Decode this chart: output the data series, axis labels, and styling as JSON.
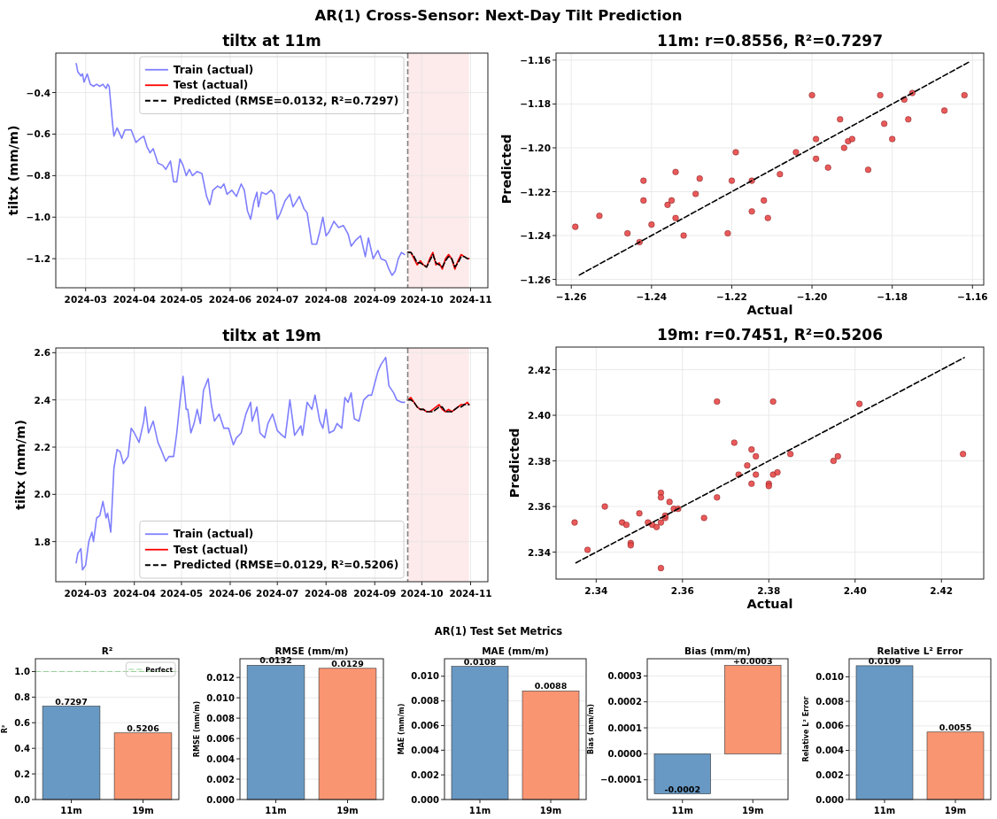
{
  "chart_data": [
    {
      "type": "other",
      "title": "AR(1) Cross-Sensor: Next-Day Tilt Prediction"
    },
    {
      "type": "line",
      "title": "tiltx at 11m",
      "ylabel": "tiltx (mm/m)",
      "xlim": [
        "2024-02-11",
        "2024-11-12"
      ],
      "ylim": [
        -1.34,
        -0.21
      ],
      "xticks": [
        {
          "value": "2024-03-01",
          "label": "2024-03"
        },
        {
          "value": "2024-04-01",
          "label": "2024-04"
        },
        {
          "value": "2024-05-01",
          "label": "2024-05"
        },
        {
          "value": "2024-06-01",
          "label": "2024-06"
        },
        {
          "value": "2024-07-01",
          "label": "2024-07"
        },
        {
          "value": "2024-08-01",
          "label": "2024-08"
        },
        {
          "value": "2024-09-01",
          "label": "2024-09"
        },
        {
          "value": "2024-10-01",
          "label": "2024-10"
        },
        {
          "value": "2024-11-01",
          "label": "2024-11"
        }
      ],
      "yticks": [
        {
          "value": -1.2,
          "label": "−1.2"
        },
        {
          "value": -1.0,
          "label": "−1.0"
        },
        {
          "value": -0.8,
          "label": "−0.8"
        },
        {
          "value": -0.6,
          "label": "−0.6"
        },
        {
          "value": -0.4,
          "label": "−0.4"
        }
      ],
      "grid": true,
      "legend": "top",
      "ref_lines": [
        {
          "axis": "x",
          "value": "2024-09-22",
          "color": "#808080",
          "line_style": "dashed"
        }
      ],
      "bands": [
        {
          "axis": "x",
          "from": "2024-09-22",
          "to": "2024-10-31",
          "color": "#fdeaea"
        }
      ],
      "series": [
        {
          "name": "Train (actual)",
          "color": "#7f7fff",
          "x": [
            "2024-02-24",
            "2024-02-25",
            "2024-02-27",
            "2024-02-28",
            "2024-02-29",
            "2024-03-02",
            "2024-03-04",
            "2024-03-06",
            "2024-03-08",
            "2024-03-10",
            "2024-03-12",
            "2024-03-14",
            "2024-03-15",
            "2024-03-16",
            "2024-03-18",
            "2024-03-19",
            "2024-03-21",
            "2024-03-24",
            "2024-03-26",
            "2024-03-28",
            "2024-03-30",
            "2024-04-02",
            "2024-04-05",
            "2024-04-07",
            "2024-04-09",
            "2024-04-11",
            "2024-04-13",
            "2024-04-16",
            "2024-04-19",
            "2024-04-21",
            "2024-04-24",
            "2024-04-26",
            "2024-04-28",
            "2024-04-30",
            "2024-05-02",
            "2024-05-04",
            "2024-05-06",
            "2024-05-08",
            "2024-05-11",
            "2024-05-14",
            "2024-05-17",
            "2024-05-19",
            "2024-05-21",
            "2024-05-24",
            "2024-05-26",
            "2024-05-28",
            "2024-05-30",
            "2024-06-02",
            "2024-06-05",
            "2024-06-08",
            "2024-06-10",
            "2024-06-12",
            "2024-06-14",
            "2024-06-16",
            "2024-06-18",
            "2024-06-19",
            "2024-06-21",
            "2024-06-24",
            "2024-06-27",
            "2024-06-29",
            "2024-07-01",
            "2024-07-03",
            "2024-07-06",
            "2024-07-09",
            "2024-07-11",
            "2024-07-15",
            "2024-07-18",
            "2024-07-20",
            "2024-07-23",
            "2024-07-26",
            "2024-07-28",
            "2024-07-30",
            "2024-08-01",
            "2024-08-03",
            "2024-08-06",
            "2024-08-09",
            "2024-08-12",
            "2024-08-15",
            "2024-08-17",
            "2024-08-20",
            "2024-08-23",
            "2024-08-26",
            "2024-08-28",
            "2024-08-31",
            "2024-09-03",
            "2024-09-05",
            "2024-09-08",
            "2024-09-10",
            "2024-09-12",
            "2024-09-14",
            "2024-09-16",
            "2024-09-18",
            "2024-09-20"
          ],
          "values": [
            -0.26,
            -0.3,
            -0.32,
            -0.31,
            -0.35,
            -0.31,
            -0.36,
            -0.37,
            -0.36,
            -0.37,
            -0.36,
            -0.38,
            -0.36,
            -0.37,
            -0.54,
            -0.61,
            -0.57,
            -0.62,
            -0.58,
            -0.58,
            -0.58,
            -0.64,
            -0.62,
            -0.61,
            -0.66,
            -0.69,
            -0.67,
            -0.74,
            -0.75,
            -0.77,
            -0.73,
            -0.83,
            -0.83,
            -0.72,
            -0.75,
            -0.8,
            -0.77,
            -0.8,
            -0.78,
            -0.79,
            -0.9,
            -0.94,
            -0.87,
            -0.85,
            -0.86,
            -0.84,
            -0.89,
            -0.87,
            -0.9,
            -0.84,
            -0.87,
            -0.97,
            -1.01,
            -0.93,
            -0.88,
            -0.95,
            -0.88,
            -0.89,
            -0.87,
            -0.89,
            -1.01,
            -0.98,
            -0.92,
            -0.89,
            -0.95,
            -0.9,
            -0.96,
            -0.98,
            -1.13,
            -1.13,
            -1.07,
            -1.0,
            -1.09,
            -1.07,
            -1.02,
            -1.05,
            -1.04,
            -1.08,
            -1.14,
            -1.11,
            -1.09,
            -1.19,
            -1.1,
            -1.2,
            -1.16,
            -1.2,
            -1.21,
            -1.25,
            -1.28,
            -1.26,
            -1.2,
            -1.17,
            -1.18
          ]
        },
        {
          "name": "Test (actual)",
          "color": "#ff0000",
          "x": [
            "2024-09-22",
            "2024-09-24",
            "2024-09-26",
            "2024-09-28",
            "2024-09-30",
            "2024-10-02",
            "2024-10-04",
            "2024-10-06",
            "2024-10-08",
            "2024-10-10",
            "2024-10-12",
            "2024-10-14",
            "2024-10-16",
            "2024-10-18",
            "2024-10-20",
            "2024-10-22",
            "2024-10-24",
            "2024-10-26",
            "2024-10-28",
            "2024-10-30",
            "2024-10-31"
          ],
          "values": [
            -1.17,
            -1.17,
            -1.2,
            -1.23,
            -1.21,
            -1.23,
            -1.24,
            -1.2,
            -1.17,
            -1.23,
            -1.22,
            -1.25,
            -1.2,
            -1.18,
            -1.2,
            -1.25,
            -1.21,
            -1.18,
            -1.19,
            -1.2,
            -1.2
          ]
        },
        {
          "name": "Predicted (RMSE=0.0132, R²=0.7297)",
          "color": "#000000",
          "line_style": "dashed",
          "x": [
            "2024-09-22",
            "2024-09-24",
            "2024-09-26",
            "2024-09-28",
            "2024-09-30",
            "2024-10-02",
            "2024-10-04",
            "2024-10-06",
            "2024-10-08",
            "2024-10-10",
            "2024-10-12",
            "2024-10-14",
            "2024-10-16",
            "2024-10-18",
            "2024-10-20",
            "2024-10-22",
            "2024-10-24",
            "2024-10-26",
            "2024-10-28",
            "2024-10-30",
            "2024-10-31"
          ],
          "values": [
            -1.17,
            -1.17,
            -1.19,
            -1.22,
            -1.22,
            -1.23,
            -1.24,
            -1.21,
            -1.18,
            -1.22,
            -1.23,
            -1.24,
            -1.21,
            -1.19,
            -1.2,
            -1.24,
            -1.22,
            -1.19,
            -1.19,
            -1.2,
            -1.2
          ]
        }
      ]
    },
    {
      "type": "scatter",
      "title": "11m: r=0.8556, R²=0.7297",
      "xlabel": "Actual",
      "ylabel": "Predicted",
      "xlim": [
        -1.2638,
        -1.1572
      ],
      "ylim": [
        -1.2626,
        -1.1568
      ],
      "xticks": [
        {
          "value": -1.26,
          "label": "−1.26"
        },
        {
          "value": -1.24,
          "label": "−1.24"
        },
        {
          "value": -1.22,
          "label": "−1.22"
        },
        {
          "value": -1.2,
          "label": "−1.20"
        },
        {
          "value": -1.18,
          "label": "−1.18"
        },
        {
          "value": -1.16,
          "label": "−1.16"
        }
      ],
      "yticks": [
        {
          "value": -1.26,
          "label": "−1.26"
        },
        {
          "value": -1.24,
          "label": "−1.24"
        },
        {
          "value": -1.22,
          "label": "−1.22"
        },
        {
          "value": -1.2,
          "label": "−1.20"
        },
        {
          "value": -1.18,
          "label": "−1.18"
        },
        {
          "value": -1.16,
          "label": "−1.16"
        }
      ],
      "grid": true,
      "series": [
        {
          "color": "#e84848",
          "marker": "circle",
          "x": [
            -1.259,
            -1.253,
            -1.246,
            -1.243,
            -1.242,
            -1.242,
            -1.24,
            -1.236,
            -1.235,
            -1.234,
            -1.234,
            -1.232,
            -1.229,
            -1.228,
            -1.221,
            -1.22,
            -1.219,
            -1.215,
            -1.215,
            -1.212,
            -1.211,
            -1.208,
            -1.204,
            -1.2,
            -1.199,
            -1.199,
            -1.196,
            -1.193,
            -1.192,
            -1.191,
            -1.19,
            -1.186,
            -1.183,
            -1.182,
            -1.18,
            -1.177,
            -1.176,
            -1.175,
            -1.167,
            -1.162
          ],
          "values": [
            -1.236,
            -1.231,
            -1.239,
            -1.243,
            -1.215,
            -1.224,
            -1.235,
            -1.226,
            -1.224,
            -1.232,
            -1.211,
            -1.24,
            -1.221,
            -1.214,
            -1.239,
            -1.215,
            -1.202,
            -1.215,
            -1.229,
            -1.224,
            -1.232,
            -1.212,
            -1.202,
            -1.176,
            -1.205,
            -1.196,
            -1.209,
            -1.187,
            -1.2,
            -1.197,
            -1.196,
            -1.21,
            -1.176,
            -1.189,
            -1.196,
            -1.178,
            -1.187,
            -1.175,
            -1.183,
            -1.176
          ]
        },
        {
          "type": "line",
          "color": "#000000",
          "line_style": "dashed",
          "x": [
            -1.258,
            -1.161
          ],
          "values": [
            -1.258,
            -1.161
          ]
        }
      ]
    },
    {
      "type": "line",
      "title": "tiltx at 19m",
      "ylabel": "tiltx (mm/m)",
      "xlim": [
        "2024-02-11",
        "2024-11-12"
      ],
      "ylim": [
        1.63,
        2.62
      ],
      "xticks": [
        {
          "value": "2024-03-01",
          "label": "2024-03"
        },
        {
          "value": "2024-04-01",
          "label": "2024-04"
        },
        {
          "value": "2024-05-01",
          "label": "2024-05"
        },
        {
          "value": "2024-06-01",
          "label": "2024-06"
        },
        {
          "value": "2024-07-01",
          "label": "2024-07"
        },
        {
          "value": "2024-08-01",
          "label": "2024-08"
        },
        {
          "value": "2024-09-01",
          "label": "2024-09"
        },
        {
          "value": "2024-10-01",
          "label": "2024-10"
        },
        {
          "value": "2024-11-01",
          "label": "2024-11"
        }
      ],
      "yticks": [
        {
          "value": 1.8,
          "label": "1.8"
        },
        {
          "value": 2.0,
          "label": "2.0"
        },
        {
          "value": 2.2,
          "label": "2.2"
        },
        {
          "value": 2.4,
          "label": "2.4"
        },
        {
          "value": 2.6,
          "label": "2.6"
        }
      ],
      "grid": true,
      "legend": "bottom",
      "ref_lines": [
        {
          "axis": "x",
          "value": "2024-09-22",
          "color": "#808080",
          "line_style": "dashed"
        }
      ],
      "bands": [
        {
          "axis": "x",
          "from": "2024-09-22",
          "to": "2024-10-31",
          "color": "#fdeaea"
        }
      ],
      "series": [
        {
          "name": "Train (actual)",
          "color": "#7f7fff",
          "x": [
            "2024-02-24",
            "2024-02-25",
            "2024-02-26",
            "2024-02-27",
            "2024-02-28",
            "2024-03-01",
            "2024-03-03",
            "2024-03-05",
            "2024-03-06",
            "2024-03-08",
            "2024-03-10",
            "2024-03-12",
            "2024-03-14",
            "2024-03-15",
            "2024-03-17",
            "2024-03-19",
            "2024-03-21",
            "2024-03-23",
            "2024-03-25",
            "2024-03-26",
            "2024-03-28",
            "2024-03-30",
            "2024-04-01",
            "2024-04-04",
            "2024-04-07",
            "2024-04-08",
            "2024-04-10",
            "2024-04-13",
            "2024-04-16",
            "2024-04-18",
            "2024-04-21",
            "2024-04-23",
            "2024-04-26",
            "2024-04-28",
            "2024-04-30",
            "2024-05-02",
            "2024-05-04",
            "2024-05-05",
            "2024-05-07",
            "2024-05-09",
            "2024-05-11",
            "2024-05-13",
            "2024-05-15",
            "2024-05-18",
            "2024-05-20",
            "2024-05-22",
            "2024-05-25",
            "2024-05-28",
            "2024-05-31",
            "2024-06-03",
            "2024-06-05",
            "2024-06-08",
            "2024-06-11",
            "2024-06-14",
            "2024-06-15",
            "2024-06-18",
            "2024-06-20",
            "2024-06-23",
            "2024-06-25",
            "2024-06-28",
            "2024-07-01",
            "2024-07-04",
            "2024-07-06",
            "2024-07-09",
            "2024-07-12",
            "2024-07-16",
            "2024-07-17",
            "2024-07-20",
            "2024-07-23",
            "2024-07-25",
            "2024-07-28",
            "2024-07-30",
            "2024-08-01",
            "2024-08-03",
            "2024-08-06",
            "2024-08-08",
            "2024-08-11",
            "2024-08-13",
            "2024-08-15",
            "2024-08-17",
            "2024-08-19",
            "2024-08-22",
            "2024-08-25",
            "2024-08-28",
            "2024-08-30",
            "2024-09-01",
            "2024-09-03",
            "2024-09-05",
            "2024-09-07",
            "2024-09-08",
            "2024-09-10",
            "2024-09-13",
            "2024-09-15",
            "2024-09-18",
            "2024-09-20"
          ],
          "values": [
            1.71,
            1.75,
            1.76,
            1.77,
            1.68,
            1.7,
            1.8,
            1.84,
            1.8,
            1.9,
            1.91,
            1.97,
            1.9,
            1.92,
            1.84,
            2.11,
            2.19,
            2.18,
            2.13,
            2.14,
            2.16,
            2.28,
            2.26,
            2.22,
            2.31,
            2.37,
            2.26,
            2.31,
            2.22,
            2.19,
            2.14,
            2.16,
            2.16,
            2.26,
            2.39,
            2.5,
            2.36,
            2.36,
            2.26,
            2.3,
            2.36,
            2.3,
            2.44,
            2.49,
            2.38,
            2.31,
            2.34,
            2.28,
            2.28,
            2.21,
            2.24,
            2.26,
            2.34,
            2.39,
            2.31,
            2.37,
            2.26,
            2.24,
            2.3,
            2.34,
            2.27,
            2.25,
            2.24,
            2.4,
            2.25,
            2.29,
            2.25,
            2.39,
            2.36,
            2.42,
            2.31,
            2.28,
            2.36,
            2.26,
            2.27,
            2.3,
            2.28,
            2.41,
            2.39,
            2.43,
            2.32,
            2.31,
            2.4,
            2.42,
            2.42,
            2.47,
            2.52,
            2.55,
            2.57,
            2.58,
            2.46,
            2.43,
            2.4,
            2.39,
            2.39
          ]
        },
        {
          "name": "Test (actual)",
          "color": "#ff0000",
          "x": [
            "2024-09-22",
            "2024-09-24",
            "2024-09-26",
            "2024-09-28",
            "2024-09-30",
            "2024-10-02",
            "2024-10-04",
            "2024-10-06",
            "2024-10-08",
            "2024-10-10",
            "2024-10-12",
            "2024-10-14",
            "2024-10-16",
            "2024-10-18",
            "2024-10-20",
            "2024-10-22",
            "2024-10-24",
            "2024-10-26",
            "2024-10-28",
            "2024-10-30",
            "2024-10-31"
          ],
          "values": [
            2.4,
            2.41,
            2.39,
            2.37,
            2.36,
            2.36,
            2.35,
            2.35,
            2.36,
            2.37,
            2.38,
            2.36,
            2.35,
            2.36,
            2.35,
            2.36,
            2.37,
            2.38,
            2.38,
            2.39,
            2.38
          ]
        },
        {
          "name": "Predicted (RMSE=0.0129, R²=0.5206)",
          "color": "#000000",
          "line_style": "dashed",
          "x": [
            "2024-09-22",
            "2024-09-24",
            "2024-09-26",
            "2024-09-28",
            "2024-09-30",
            "2024-10-02",
            "2024-10-04",
            "2024-10-06",
            "2024-10-08",
            "2024-10-10",
            "2024-10-12",
            "2024-10-14",
            "2024-10-16",
            "2024-10-18",
            "2024-10-20",
            "2024-10-22",
            "2024-10-24",
            "2024-10-26",
            "2024-10-28",
            "2024-10-30",
            "2024-10-31"
          ],
          "values": [
            2.4,
            2.4,
            2.39,
            2.37,
            2.36,
            2.36,
            2.35,
            2.35,
            2.35,
            2.36,
            2.37,
            2.37,
            2.35,
            2.35,
            2.35,
            2.36,
            2.37,
            2.37,
            2.38,
            2.38,
            2.38
          ]
        }
      ]
    },
    {
      "type": "scatter",
      "title": "19m: r=0.7451, R²=0.5206",
      "xlabel": "Actual",
      "ylabel": "Predicted",
      "xlim": [
        2.3307,
        2.4298
      ],
      "ylim": [
        2.3282,
        2.4299
      ],
      "xticks": [
        {
          "value": 2.34,
          "label": "2.34"
        },
        {
          "value": 2.36,
          "label": "2.36"
        },
        {
          "value": 2.38,
          "label": "2.38"
        },
        {
          "value": 2.4,
          "label": "2.40"
        },
        {
          "value": 2.42,
          "label": "2.42"
        }
      ],
      "yticks": [
        {
          "value": 2.34,
          "label": "2.34"
        },
        {
          "value": 2.36,
          "label": "2.36"
        },
        {
          "value": 2.38,
          "label": "2.38"
        },
        {
          "value": 2.4,
          "label": "2.40"
        },
        {
          "value": 2.42,
          "label": "2.42"
        }
      ],
      "grid": true,
      "series": [
        {
          "color": "#e84848",
          "marker": "circle",
          "x": [
            2.335,
            2.338,
            2.342,
            2.346,
            2.347,
            2.348,
            2.348,
            2.35,
            2.352,
            2.353,
            2.354,
            2.355,
            2.355,
            2.355,
            2.355,
            2.356,
            2.356,
            2.357,
            2.358,
            2.359,
            2.365,
            2.368,
            2.368,
            2.372,
            2.373,
            2.375,
            2.376,
            2.376,
            2.377,
            2.377,
            2.38,
            2.38,
            2.381,
            2.381,
            2.382,
            2.385,
            2.395,
            2.396,
            2.401,
            2.425
          ],
          "values": [
            2.353,
            2.341,
            2.36,
            2.353,
            2.352,
            2.344,
            2.343,
            2.357,
            2.353,
            2.352,
            2.351,
            2.353,
            2.366,
            2.364,
            2.333,
            2.355,
            2.356,
            2.362,
            2.359,
            2.359,
            2.355,
            2.406,
            2.364,
            2.388,
            2.374,
            2.378,
            2.385,
            2.37,
            2.374,
            2.382,
            2.37,
            2.369,
            2.406,
            2.374,
            2.375,
            2.383,
            2.38,
            2.382,
            2.405,
            2.383
          ]
        },
        {
          "type": "line",
          "color": "#000000",
          "line_style": "dashed",
          "x": [
            2.3353,
            2.4253
          ],
          "values": [
            2.3353,
            2.4253
          ]
        }
      ]
    },
    {
      "type": "other",
      "title": "AR(1) Test Set Metrics"
    },
    {
      "type": "bar",
      "title": "R²",
      "ylabel": "R²",
      "categories": [
        "11m",
        "19m"
      ],
      "values": [
        0.7297,
        0.5206
      ],
      "colors": [
        "#6899c4",
        "#fa9572"
      ],
      "ylim": [
        0,
        1.1
      ],
      "yticks": [
        {
          "value": 0,
          "label": "0.0"
        },
        {
          "value": 0.2,
          "label": "0.2"
        },
        {
          "value": 0.4,
          "label": "0.4"
        },
        {
          "value": 0.6,
          "label": "0.6"
        },
        {
          "value": 0.8,
          "label": "0.8"
        },
        {
          "value": 1.0,
          "label": "1.0"
        }
      ],
      "grid": "y",
      "data_labels": true,
      "legend": "top right",
      "ref_lines": [
        {
          "axis": "y",
          "value": 1.0,
          "label": "Perfect",
          "color": "#80c980",
          "line_style": "dashed"
        }
      ]
    },
    {
      "type": "bar",
      "title": "RMSE (mm/m)",
      "ylabel": "RMSE (mm/m)",
      "categories": [
        "11m",
        "19m"
      ],
      "values": [
        0.0132,
        0.0129
      ],
      "colors": [
        "#6899c4",
        "#fa9572"
      ],
      "ylim": [
        0,
        0.01384
      ],
      "yticks": [
        {
          "value": 0,
          "label": "0.000"
        },
        {
          "value": 0.002,
          "label": "0.002"
        },
        {
          "value": 0.004,
          "label": "0.004"
        },
        {
          "value": 0.006,
          "label": "0.006"
        },
        {
          "value": 0.008,
          "label": "0.008"
        },
        {
          "value": 0.01,
          "label": "0.010"
        },
        {
          "value": 0.012,
          "label": "0.012"
        }
      ],
      "grid": "y",
      "data_labels": true
    },
    {
      "type": "bar",
      "title": "MAE (mm/m)",
      "ylabel": "MAE (mm/m)",
      "categories": [
        "11m",
        "19m"
      ],
      "values": [
        0.0108,
        0.0088
      ],
      "colors": [
        "#6899c4",
        "#fa9572"
      ],
      "ylim": [
        0,
        0.01142
      ],
      "yticks": [
        {
          "value": 0,
          "label": "0.000"
        },
        {
          "value": 0.002,
          "label": "0.002"
        },
        {
          "value": 0.004,
          "label": "0.004"
        },
        {
          "value": 0.006,
          "label": "0.006"
        },
        {
          "value": 0.008,
          "label": "0.008"
        },
        {
          "value": 0.01,
          "label": "0.010"
        }
      ],
      "grid": "y",
      "data_labels": true
    },
    {
      "type": "bar",
      "title": "Bias (mm/m)",
      "ylabel": "Bias (mm/m)",
      "categories": [
        "11m",
        "19m"
      ],
      "values": [
        -0.000154,
        0.00034
      ],
      "value_labels": [
        "-0.0002",
        "+0.0003"
      ],
      "colors": [
        "#6899c4",
        "#fa9572"
      ],
      "ylim": [
        -0.000176,
        0.000366
      ],
      "yticks": [
        {
          "value": -0.0001,
          "label": "−0.0001"
        },
        {
          "value": 0,
          "label": "0.0000"
        },
        {
          "value": 0.0001,
          "label": "0.0001"
        },
        {
          "value": 0.0002,
          "label": "0.0002"
        },
        {
          "value": 0.0003,
          "label": "0.0003"
        }
      ],
      "grid": "y"
    },
    {
      "type": "bar",
      "title": "Relative L² Error",
      "ylabel": "Relative L² Error",
      "categories": [
        "11m",
        "19m"
      ],
      "values": [
        0.0109,
        0.0055
      ],
      "colors": [
        "#6899c4",
        "#fa9572"
      ],
      "ylim": [
        0,
        0.01147
      ],
      "yticks": [
        {
          "value": 0,
          "label": "0.000"
        },
        {
          "value": 0.002,
          "label": "0.002"
        },
        {
          "value": 0.004,
          "label": "0.004"
        },
        {
          "value": 0.006,
          "label": "0.006"
        },
        {
          "value": 0.008,
          "label": "0.008"
        },
        {
          "value": 0.01,
          "label": "0.010"
        }
      ],
      "grid": "y",
      "data_labels": true
    }
  ]
}
